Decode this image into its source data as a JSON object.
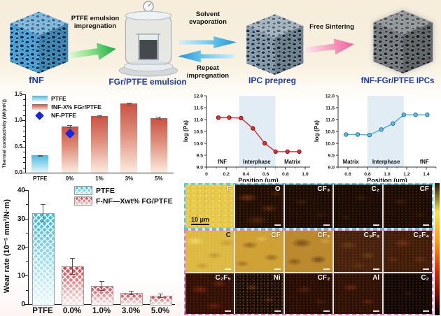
{
  "process": {
    "steps": [
      {
        "label": "fNF"
      },
      {
        "label": "FGr/PTFE emulsion"
      },
      {
        "label": "IPC prepreg"
      },
      {
        "label": "fNF-FGr/PTFE IPCs"
      }
    ],
    "arrow_impregnation": "PTFE emulsion impregnation",
    "arrow_solvent": "Solvent evaporation",
    "arrow_repeat": "Repeat impregnation",
    "arrow_sintering": "Free Sintering"
  },
  "chart_data": [
    {
      "id": "thermal-conductivity",
      "type": "bar",
      "categories": [
        "PTFE",
        "0%",
        "1%",
        "3%",
        "5%"
      ],
      "values": [
        0.33,
        0.89,
        1.08,
        1.32,
        1.05
      ],
      "errors": [
        0.01,
        0.02,
        0.015,
        0.02,
        0.02
      ],
      "point_series": {
        "name": "NF-PTFE",
        "category": "0%",
        "value": 0.75
      },
      "ylabel": "Thermal conductivity (W/(mK))",
      "ylim": [
        0,
        1.5
      ],
      "yticks": [
        0,
        0.5,
        1,
        1.5
      ],
      "legend": [
        {
          "label": "PTFE"
        },
        {
          "label": "fNF-X% FGr/PTFE"
        },
        {
          "label": "NF-PTFE"
        }
      ]
    },
    {
      "id": "modulus-profile-fnf-to-matrix",
      "type": "line",
      "x": [
        0.12,
        0.23,
        0.35,
        0.47,
        0.59,
        0.7,
        0.82,
        0.94
      ],
      "y": [
        11.08,
        11.08,
        11.06,
        10.63,
        10.0,
        9.65,
        9.65,
        9.65
      ],
      "color": "#d42a2e",
      "marker_fill": "#e03030",
      "marker_edge": "#7a0c10",
      "xlabel": "Position (μm)",
      "ylabel": "log (Pa)",
      "xlim": [
        0,
        1.05
      ],
      "xticks": [
        0,
        0.2,
        0.4,
        0.6,
        0.8,
        1.0
      ],
      "ylim": [
        9,
        12
      ],
      "yticks": [
        9,
        9.5,
        10,
        10.5,
        11,
        11.5,
        12
      ],
      "regions": [
        {
          "label": "fNF",
          "label_x": 0.16
        },
        {
          "label": "Interphase",
          "label_x": 0.51,
          "shaded": [
            0.33,
            0.7
          ]
        },
        {
          "label": "Matrix",
          "label_x": 0.87
        }
      ]
    },
    {
      "id": "modulus-profile-matrix-to-fnf",
      "type": "line",
      "x": [
        0.58,
        0.7,
        0.82,
        0.94,
        1.06,
        1.17,
        1.29,
        1.41
      ],
      "y": [
        10.37,
        10.37,
        10.35,
        10.58,
        10.83,
        11.2,
        11.2,
        11.2
      ],
      "color": "#46aede",
      "marker_fill": "#5ec0ea",
      "marker_edge": "#17648f",
      "xlabel": "Position (μm)",
      "ylabel": "log (Pa)",
      "xlim": [
        0.5,
        1.5
      ],
      "xticks": [
        0.6,
        0.8,
        1.0,
        1.2,
        1.4
      ],
      "ylim": [
        9,
        12
      ],
      "yticks": [
        9,
        9.5,
        10,
        10.5,
        11,
        11.5,
        12
      ],
      "regions": [
        {
          "label": "Matrix",
          "label_x": 0.63
        },
        {
          "label": "Interphase",
          "label_x": 0.99,
          "shaded": [
            0.8,
            1.17
          ]
        },
        {
          "label": "fNF",
          "label_x": 1.38
        }
      ]
    },
    {
      "id": "wear-rate",
      "type": "bar",
      "categories": [
        "PTFE",
        "0.0%",
        "1.0%",
        "3.0%",
        "5.0%"
      ],
      "values": [
        32,
        13.3,
        6.4,
        4.0,
        3.0
      ],
      "errors": [
        3.0,
        2.8,
        1.6,
        0.6,
        0.6
      ],
      "ylabel": "Wear rate (10⁻⁵ mm³/N·m)",
      "ylim": [
        0,
        40
      ],
      "yticks": [
        0,
        10,
        20,
        30,
        40
      ],
      "legend": [
        {
          "label": "PTFE"
        },
        {
          "label": "F-NF—Xwt% FG/PTFE"
        }
      ]
    }
  ],
  "edx_map": {
    "scale_label": "10 μm",
    "rows": [
      {
        "cells": [
          {
            "label": "F",
            "tone": "f-yellow",
            "label_color": "#ffffff"
          },
          {
            "label": "O",
            "tone": "o-dark"
          },
          {
            "label": "CF₃",
            "tone": "dark1"
          },
          {
            "label": "C₂",
            "tone": "dark2"
          },
          {
            "label": "CF",
            "tone": "dark1"
          }
        ]
      },
      {
        "cells": [
          {
            "label": "C",
            "tone": "c-bright",
            "label_color": "#111111"
          },
          {
            "label": "CF",
            "tone": "cf-gold"
          },
          {
            "label": "CF₃",
            "tone": "cf3-amber"
          },
          {
            "label": "C₃F₃",
            "tone": "c3f3-brown"
          },
          {
            "label": "C₂F₄",
            "tone": "c2f4-rust"
          }
        ]
      },
      {
        "cells": [
          {
            "label": "C₂F₅",
            "tone": "c2f5-red"
          },
          {
            "label": "Ni",
            "tone": "ni-speckle"
          },
          {
            "label": "CF₂",
            "tone": "cf2-dark"
          },
          {
            "label": "Al",
            "tone": "al-red"
          },
          {
            "label": "C₂",
            "tone": "c2-black"
          }
        ]
      }
    ]
  },
  "colors": {
    "caption_blue": "#1b3ca9",
    "ptfe_cyan": "#4fb9e0",
    "composite_red": "#c85141",
    "nf_ptfe_blue": "#1626d8",
    "line_red": "#d42a2e",
    "line_blue": "#46aede"
  }
}
